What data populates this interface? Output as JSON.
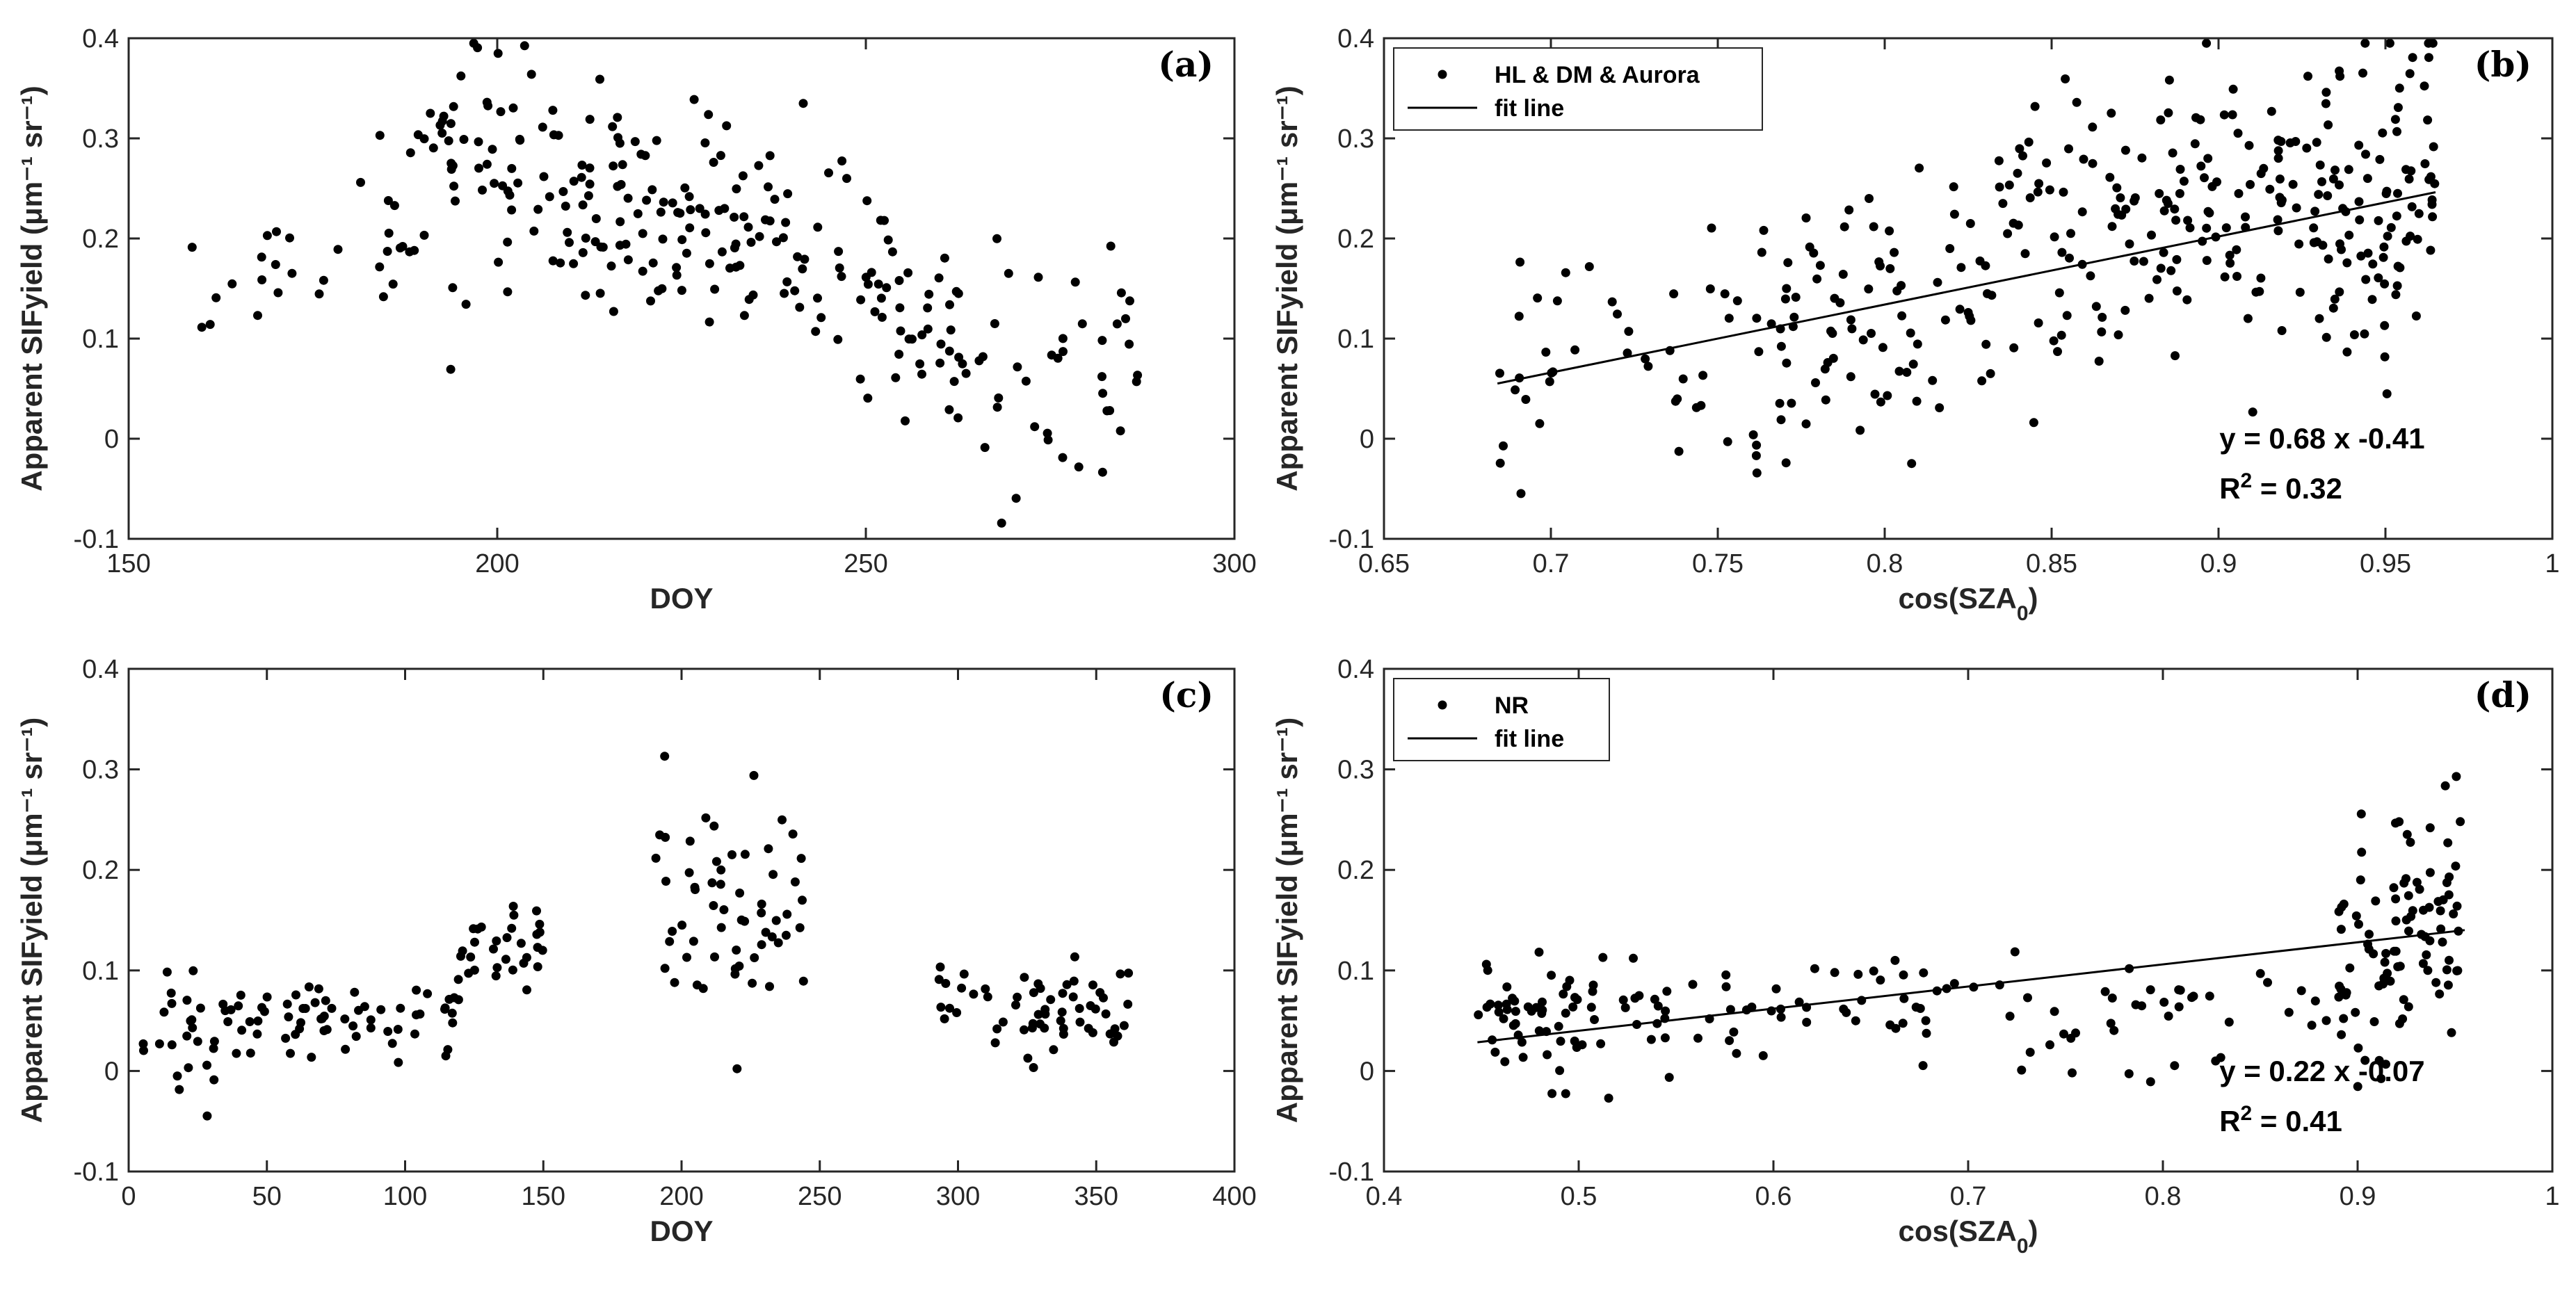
{
  "chart_data": [
    {
      "id": "a",
      "type": "scatter",
      "panel_label": "(a)",
      "xlabel": "DOY",
      "ylabel": "Apparent SIFyield (μm⁻¹ sr⁻¹)",
      "xlim": [
        150,
        300
      ],
      "ylim": [
        -0.1,
        0.4
      ],
      "xticks": [
        150,
        200,
        250,
        300
      ],
      "yticks": [
        -0.1,
        0,
        0.1,
        0.2,
        0.3,
        0.4
      ],
      "xtick_labels": [
        "150",
        "200",
        "250",
        "300"
      ],
      "ytick_labels": [
        "-0.1",
        "0",
        "0.1",
        "0.2",
        "0.3",
        "0.4"
      ],
      "seed": 11,
      "groups": [
        {
          "x": [
            158,
            182
          ],
          "y": [
            0.14,
            0.22
          ],
          "n": 18,
          "s": 0.04
        },
        {
          "x": [
            183,
            200
          ],
          "y": [
            0.17,
            0.34
          ],
          "n": 45,
          "s": 0.055
        },
        {
          "x": [
            200,
            222
          ],
          "y": [
            0.25,
            0.22
          ],
          "n": 75,
          "s": 0.055
        },
        {
          "x": [
            222,
            248
          ],
          "y": [
            0.22,
            0.18
          ],
          "n": 75,
          "s": 0.05
        },
        {
          "x": [
            248,
            262
          ],
          "y": [
            0.2,
            0.06
          ],
          "n": 40,
          "s": 0.06
        },
        {
          "x": [
            262,
            287
          ],
          "y": [
            0.07,
            0.05
          ],
          "n": 45,
          "s": 0.06
        }
      ]
    },
    {
      "id": "b",
      "type": "scatter",
      "panel_label": "(b)",
      "xlabel": "cos(SZA",
      "xlabel_sub": "0",
      "ylabel": "Apparent SIFyield (μm⁻¹ sr⁻¹)",
      "xlim": [
        0.65,
        1.0
      ],
      "ylim": [
        -0.1,
        0.4
      ],
      "xticks": [
        0.65,
        0.7,
        0.75,
        0.8,
        0.85,
        0.9,
        0.95,
        1
      ],
      "yticks": [
        -0.1,
        0,
        0.1,
        0.2,
        0.3,
        0.4
      ],
      "xtick_labels": [
        "0.65",
        "0.7",
        "0.75",
        "0.8",
        "0.85",
        "0.9",
        "0.95",
        "1"
      ],
      "ytick_labels": [
        "-0.1",
        "0",
        "0.1",
        "0.2",
        "0.3",
        "0.4"
      ],
      "seed": 23,
      "groups": [
        {
          "x": [
            0.684,
            0.76
          ],
          "y": [
            0.05,
            0.1
          ],
          "n": 40,
          "s": 0.07
        },
        {
          "x": [
            0.76,
            0.85
          ],
          "y": [
            0.1,
            0.18
          ],
          "n": 110,
          "s": 0.075
        },
        {
          "x": [
            0.85,
            0.93
          ],
          "y": [
            0.18,
            0.23
          ],
          "n": 130,
          "s": 0.065
        },
        {
          "x": [
            0.93,
            0.965
          ],
          "y": [
            0.23,
            0.24
          ],
          "n": 90,
          "s": 0.08
        }
      ],
      "legend": {
        "position": "top-left",
        "entries": [
          "HL & DM & Aurora",
          "fit line"
        ]
      },
      "fit": {
        "slope": 0.68,
        "intercept": -0.41,
        "x_range": [
          0.684,
          0.965
        ]
      },
      "equation": "y = 0.68 x -0.41",
      "r2_label": "R",
      "r2_sup": "2",
      "r2_value": " = 0.32"
    },
    {
      "id": "c",
      "type": "scatter",
      "panel_label": "(c)",
      "xlabel": "DOY",
      "ylabel": "Apparent SIFyield (μm⁻¹ sr⁻¹)",
      "xlim": [
        0,
        400
      ],
      "ylim": [
        -0.1,
        0.4
      ],
      "xticks": [
        0,
        50,
        100,
        150,
        200,
        250,
        300,
        350,
        400
      ],
      "yticks": [
        -0.1,
        0,
        0.1,
        0.2,
        0.3,
        0.4
      ],
      "xtick_labels": [
        "0",
        "50",
        "100",
        "150",
        "200",
        "250",
        "300",
        "350",
        "400"
      ],
      "ytick_labels": [
        "-0.1",
        "0",
        "0.1",
        "0.2",
        "0.3",
        "0.4"
      ],
      "seed": 37,
      "groups": [
        {
          "x": [
            5,
            40
          ],
          "y": [
            0.03,
            0.05
          ],
          "n": 30,
          "s": 0.035
        },
        {
          "x": [
            40,
            120
          ],
          "y": [
            0.05,
            0.06
          ],
          "n": 60,
          "s": 0.018
        },
        {
          "x": [
            120,
            150
          ],
          "y": [
            0.13,
            0.13
          ],
          "n": 30,
          "s": 0.025
        },
        {
          "x": [
            188,
            245
          ],
          "y": [
            0.16,
            0.15
          ],
          "n": 60,
          "s": 0.055
        },
        {
          "x": [
            293,
            362
          ],
          "y": [
            0.065,
            0.06
          ],
          "n": 60,
          "s": 0.022
        }
      ]
    },
    {
      "id": "d",
      "type": "scatter",
      "panel_label": "(d)",
      "xlabel": "cos(SZA",
      "xlabel_sub": "0",
      "ylabel": "Apparent SIFyield (μm⁻¹ sr⁻¹)",
      "xlim": [
        0.4,
        1.0
      ],
      "ylim": [
        -0.1,
        0.4
      ],
      "xticks": [
        0.4,
        0.5,
        0.6,
        0.7,
        0.8,
        0.9,
        1
      ],
      "yticks": [
        -0.1,
        0,
        0.1,
        0.2,
        0.3,
        0.4
      ],
      "xtick_labels": [
        "0.4",
        "0.5",
        "0.6",
        "0.7",
        "0.8",
        "0.9",
        "1"
      ],
      "ytick_labels": [
        "-0.1",
        "0",
        "0.1",
        "0.2",
        "0.3",
        "0.4"
      ],
      "seed": 53,
      "groups": [
        {
          "x": [
            0.448,
            0.55
          ],
          "y": [
            0.05,
            0.055
          ],
          "n": 70,
          "s": 0.028
        },
        {
          "x": [
            0.55,
            0.72
          ],
          "y": [
            0.055,
            0.06
          ],
          "n": 45,
          "s": 0.025
        },
        {
          "x": [
            0.72,
            0.89
          ],
          "y": [
            0.05,
            0.07
          ],
          "n": 40,
          "s": 0.03
        },
        {
          "x": [
            0.89,
            0.955
          ],
          "y": [
            0.11,
            0.15
          ],
          "n": 95,
          "s": 0.06
        }
      ],
      "legend": {
        "position": "top-left",
        "entries": [
          "NR",
          "fit line"
        ]
      },
      "fit": {
        "slope": 0.22,
        "intercept": -0.07,
        "x_range": [
          0.448,
          0.955
        ]
      },
      "equation": "y = 0.22 x -0.07",
      "r2_label": "R",
      "r2_sup": "2",
      "r2_value": " = 0.41"
    }
  ]
}
